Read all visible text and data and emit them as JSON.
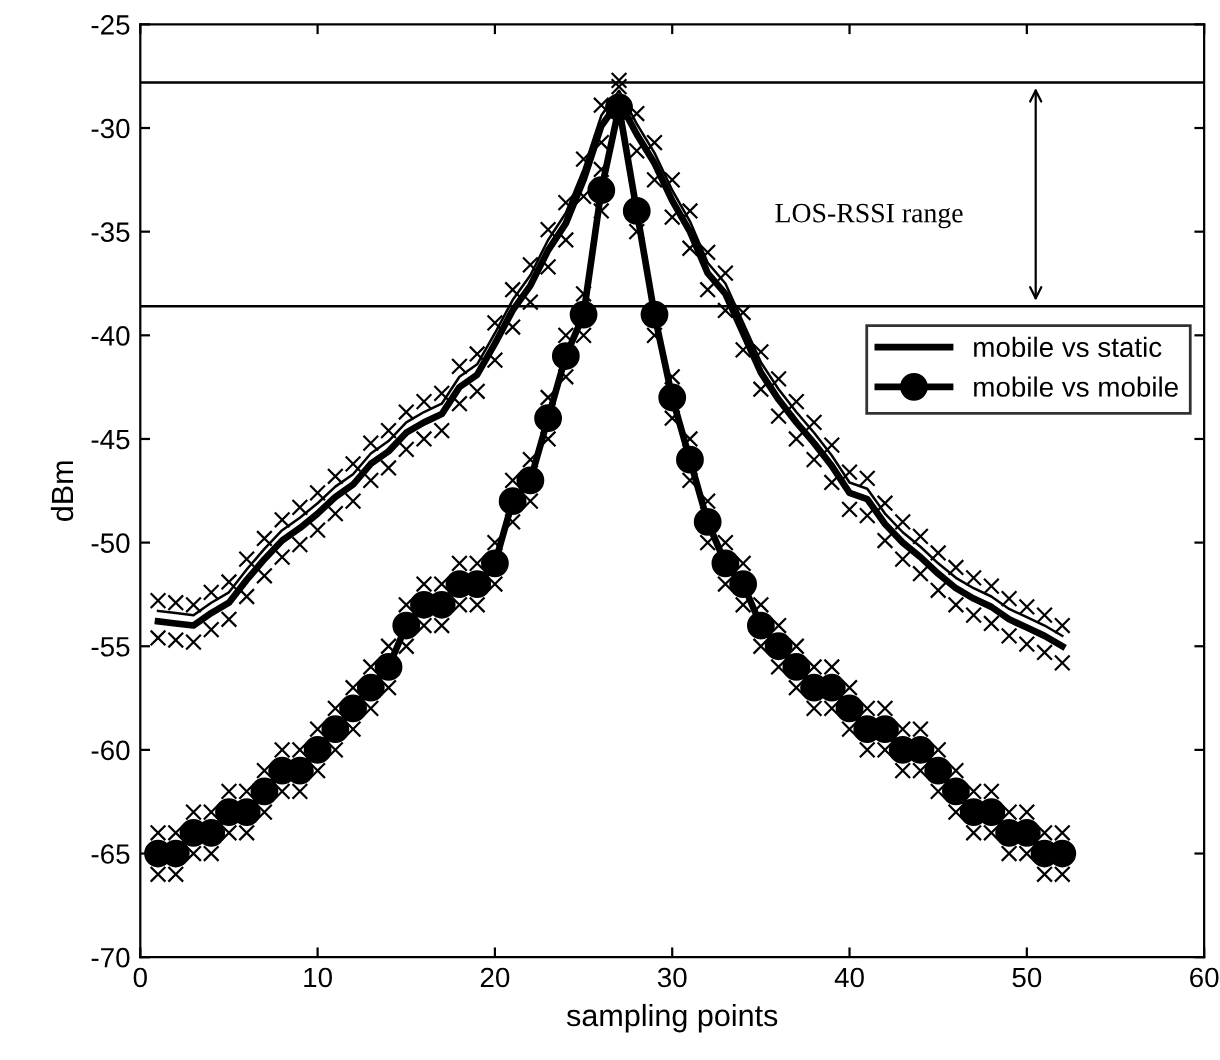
{
  "chart_data": {
    "type": "line",
    "xlabel": "sampling points",
    "ylabel": "dBm",
    "x": [
      1,
      2,
      3,
      4,
      5,
      6,
      7,
      8,
      9,
      10,
      11,
      12,
      13,
      14,
      15,
      16,
      17,
      18,
      19,
      20,
      21,
      22,
      23,
      24,
      25,
      26,
      27,
      28,
      29,
      30,
      31,
      32,
      33,
      34,
      35,
      36,
      37,
      38,
      39,
      40,
      41,
      42,
      43,
      44,
      45,
      46,
      47,
      48,
      49,
      50,
      51,
      52
    ],
    "series": [
      {
        "name": "mobile vs static",
        "color": "#000000",
        "marker": "none",
        "line_style": "solid",
        "values": [
          -53.8,
          -53.9,
          -54.0,
          -53.4,
          -52.9,
          -51.8,
          -50.8,
          -49.9,
          -49.3,
          -48.6,
          -47.8,
          -47.2,
          -46.2,
          -45.6,
          -44.7,
          -44.2,
          -43.8,
          -42.5,
          -41.9,
          -40.4,
          -38.8,
          -37.6,
          -35.9,
          -34.6,
          -32.5,
          -29.9,
          -28.7,
          -30.3,
          -31.7,
          -33.5,
          -35.0,
          -37.0,
          -38.0,
          -39.9,
          -41.8,
          -43.1,
          -44.2,
          -45.2,
          -46.3,
          -47.6,
          -47.9,
          -49.1,
          -50.0,
          -50.7,
          -51.5,
          -52.2,
          -52.7,
          -53.1,
          -53.7,
          -54.1,
          -54.5,
          -55.0
        ]
      },
      {
        "name": "mobile vs mobile",
        "color": "#000000",
        "marker": "circle",
        "line_style": "solid",
        "values": [
          -65,
          -65,
          -64,
          -64,
          -63,
          -63,
          -62,
          -61,
          -61,
          -60,
          -59,
          -58,
          -57,
          -56,
          -54,
          -53,
          -53,
          -52,
          -52,
          -51,
          -48,
          -47,
          -44,
          -41,
          -39,
          -33,
          -29,
          -34,
          -39,
          -43,
          -46,
          -49,
          -51,
          -52,
          -54,
          -55,
          -56,
          -57,
          -57,
          -58,
          -59,
          -59,
          -60,
          -60,
          -61,
          -62,
          -63,
          -63,
          -64,
          -64,
          -65,
          -65
        ]
      },
      {
        "color": "#000000",
        "marker": "none",
        "line_style": "solid",
        "values": [
          -53.3,
          -53.4,
          -53.5,
          -52.9,
          -52.4,
          -51.3,
          -50.3,
          -49.4,
          -48.8,
          -48.1,
          -47.3,
          -46.7,
          -45.7,
          -45.1,
          -44.2,
          -43.7,
          -43.3,
          -42.0,
          -41.4,
          -39.9,
          -38.3,
          -37.1,
          -35.4,
          -34.1,
          -32.0,
          -29.4,
          -28.2,
          -29.8,
          -31.2,
          -33.0,
          -34.5,
          -36.5,
          -37.5,
          -39.4,
          -41.3,
          -42.6,
          -43.7,
          -44.7,
          -45.8,
          -47.1,
          -47.4,
          -48.6,
          -49.5,
          -50.2,
          -51.0,
          -51.7,
          -52.2,
          -52.6,
          -53.2,
          -53.6,
          -54.0,
          -54.5
        ]
      },
      {
        "type": "scatter",
        "color": "#000000",
        "marker": "cross",
        "values": [
          -52.8,
          -52.9,
          -53.0,
          -52.4,
          -51.9,
          -50.8,
          -49.8,
          -48.9,
          -48.3,
          -47.6,
          -46.8,
          -46.2,
          -45.2,
          -44.6,
          -43.7,
          -43.2,
          -42.8,
          -41.5,
          -40.9,
          -39.4,
          -37.8,
          -36.6,
          -34.9,
          -33.6,
          -31.5,
          -28.9,
          -27.7,
          -29.3,
          -30.7,
          -32.5,
          -34.0,
          -36.0,
          -37.0,
          -38.9,
          -40.8,
          -42.1,
          -43.2,
          -44.2,
          -45.3,
          -46.6,
          -46.9,
          -48.1,
          -49.0,
          -49.7,
          -50.5,
          -51.2,
          -51.7,
          -52.1,
          -52.7,
          -53.1,
          -53.5,
          -54.0
        ]
      },
      {
        "type": "scatter",
        "color": "#000000",
        "marker": "cross",
        "values": [
          -54.6,
          -54.7,
          -54.8,
          -54.2,
          -53.7,
          -52.6,
          -51.6,
          -50.7,
          -50.1,
          -49.4,
          -48.6,
          -48.0,
          -47.0,
          -46.4,
          -45.5,
          -45.0,
          -44.6,
          -43.3,
          -42.7,
          -41.2,
          -39.6,
          -38.4,
          -36.7,
          -35.4,
          -33.3,
          -30.7,
          null,
          -31.1,
          -32.5,
          -34.3,
          -35.8,
          -37.8,
          -38.8,
          -40.7,
          -42.6,
          -43.9,
          -45.0,
          -46.0,
          -47.1,
          -48.4,
          -48.7,
          -49.9,
          -50.8,
          -51.5,
          -52.3,
          -53.0,
          -53.5,
          -53.9,
          -54.5,
          -54.9,
          -55.3,
          -55.8
        ]
      },
      {
        "type": "scatter",
        "color": "#000000",
        "marker": "cross",
        "values": [
          -64,
          -64,
          -63,
          -63,
          -62,
          -62,
          -61,
          -60,
          -60,
          -59,
          -58,
          -57,
          -56,
          -55,
          -53,
          -52,
          -52,
          -51,
          -51,
          -50,
          -47,
          -46,
          -43,
          -40,
          -38,
          -32,
          -28,
          null,
          null,
          -42,
          -45,
          -48,
          -50,
          -51,
          -53,
          -54,
          -55,
          -56,
          -56,
          -57,
          -58,
          -58,
          -59,
          -59,
          -60,
          -61,
          -62,
          -62,
          -63,
          -63,
          -64,
          -64
        ]
      },
      {
        "type": "scatter",
        "color": "#000000",
        "marker": "cross",
        "values": [
          -66,
          -66,
          -65,
          -65,
          -64,
          -64,
          -63,
          -62,
          -62,
          -61,
          -60,
          -59,
          -58,
          -57,
          -55,
          -54,
          -54,
          -53,
          -53,
          -52,
          -49,
          -48,
          -45,
          -42,
          -40,
          -34,
          null,
          -35,
          -40,
          -44,
          -47,
          -50,
          -52,
          -53,
          -55,
          -56,
          -57,
          -58,
          -58,
          -59,
          -60,
          -60,
          -61,
          -61,
          -62,
          -63,
          -64,
          -64,
          -65,
          -65,
          -66,
          -66
        ]
      }
    ],
    "xlim": [
      0,
      60
    ],
    "xticks": [
      0,
      10,
      20,
      30,
      40,
      50,
      60
    ],
    "ylim": [
      -70,
      -25
    ],
    "yticks": [
      -70,
      -65,
      -60,
      -55,
      -50,
      -45,
      -40,
      -35,
      -30,
      -25
    ],
    "ref_lines": [
      {
        "axis": "y",
        "value": -27.8,
        "color": "#000000"
      },
      {
        "axis": "y",
        "value": -38.6,
        "color": "#000000"
      }
    ],
    "annotations": [
      "LOS-RSSI range"
    ],
    "legend": "right"
  }
}
